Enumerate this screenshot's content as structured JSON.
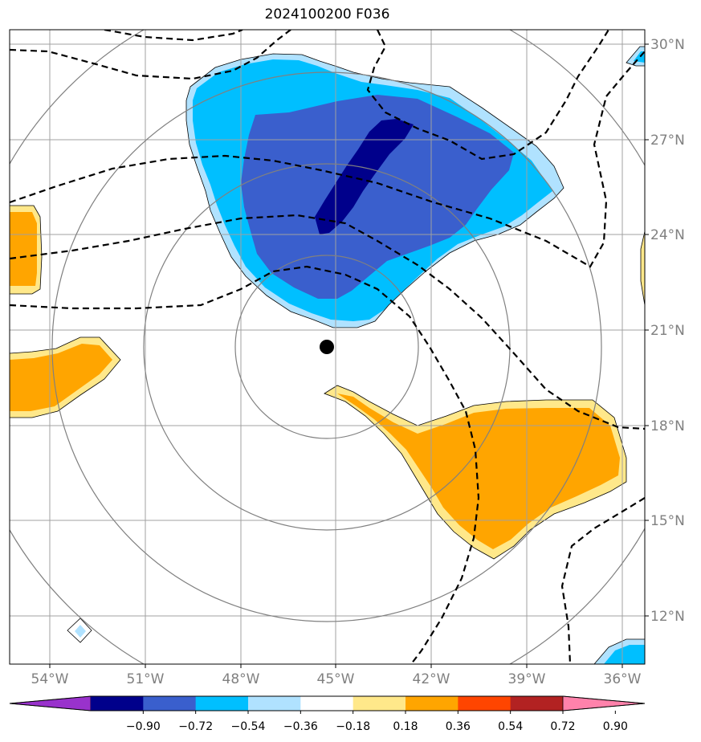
{
  "title": "2024100200 F036",
  "map": {
    "lon_labels": [
      "54°W",
      "51°W",
      "48°W",
      "45°W",
      "42°W",
      "39°W",
      "36°W"
    ],
    "lat_labels": [
      "30°N",
      "27°N",
      "24°N",
      "21°N",
      "18°N",
      "15°N",
      "12°N"
    ],
    "center_marker": "storm-center"
  },
  "colorbar": {
    "tick_labels": [
      "−0.90",
      "−0.72",
      "−0.54",
      "−0.36",
      "−0.18",
      "0.18",
      "0.36",
      "0.54",
      "0.72",
      "0.90"
    ],
    "colors": [
      "#9932cc",
      "#00008b",
      "#3a5fcd",
      "#00bfff",
      "#b0e2ff",
      "#ffffff",
      "#ffe88a",
      "#ffa500",
      "#ff4500",
      "#b22222",
      "#ff82ab"
    ]
  },
  "colors": {
    "neg_dark": "#00008b",
    "neg_mid": "#3a5fcd",
    "neg_light": "#00bfff",
    "neg_pale": "#b0e2ff",
    "pos_pale": "#ffe88a",
    "pos_mid": "#ffa500"
  }
}
